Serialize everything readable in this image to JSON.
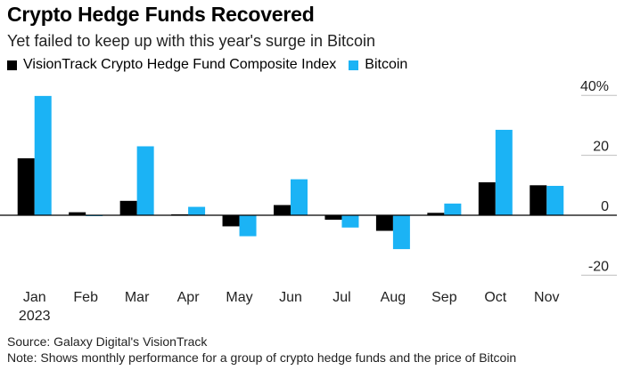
{
  "title": "Crypto Hedge Funds Recovered",
  "subtitle": "Yet failed to keep up with this year's surge in Bitcoin",
  "footer": {
    "source": "Source: Galaxy Digital's VisionTrack",
    "note": "Note: Shows monthly performance for a group of crypto hedge funds and the price of Bitcoin"
  },
  "colors": {
    "composite": "#000000",
    "bitcoin": "#1bb3f5",
    "zero_line": "#000000",
    "grid": "#bfbfbf"
  },
  "chart_data": {
    "type": "bar",
    "title": "Crypto Hedge Funds Recovered",
    "subtitle": "Yet failed to keep up with this year's surge in Bitcoin",
    "categories": [
      "Jan",
      "Feb",
      "Mar",
      "Apr",
      "May",
      "Jun",
      "Jul",
      "Aug",
      "Sep",
      "Oct",
      "Nov"
    ],
    "year_label": "2023",
    "series": [
      {
        "name": "VisionTrack Crypto Hedge Fund Composite Index",
        "values": [
          19,
          1,
          4.8,
          0.3,
          -3.7,
          3.4,
          -1.5,
          -5.2,
          0.8,
          11,
          10
        ]
      },
      {
        "name": "Bitcoin",
        "values": [
          39.8,
          -0.2,
          23,
          2.8,
          -7,
          12,
          -4.1,
          -11.3,
          3.9,
          28.5,
          9.8
        ]
      }
    ],
    "ylim": [
      -20,
      40
    ],
    "yticks": [
      40,
      20,
      0,
      -20
    ],
    "ytick_labels": [
      "40%",
      "20",
      "0",
      "-20"
    ],
    "xlabel": "",
    "ylabel": "",
    "legend_position": "top-left"
  }
}
